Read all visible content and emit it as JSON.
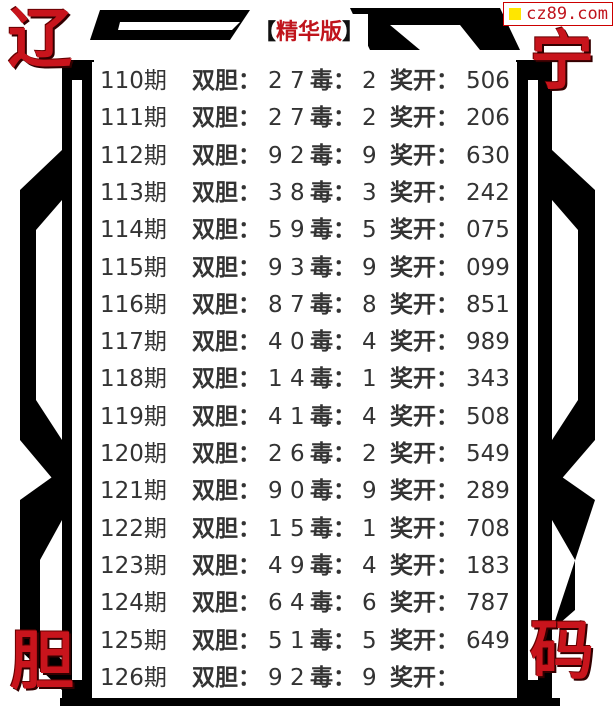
{
  "title": {
    "left_bracket": "【",
    "text": "精华版",
    "right_bracket": "】"
  },
  "watermark": "cz89.com",
  "corner_logo": [
    "辽",
    "宁",
    "胆",
    "码"
  ],
  "colors": {
    "accent_red": "#c0141c",
    "frame": "#000000",
    "text": "#333333"
  },
  "labels": {
    "period_suffix": "期",
    "double": "双胆：",
    "poison": "毒：",
    "draw": "奖开："
  },
  "rows": [
    {
      "period": "110期",
      "double": "2 7",
      "poison": "2",
      "draw": "506"
    },
    {
      "period": "111期",
      "double": "2 7",
      "poison": "2",
      "draw": "206"
    },
    {
      "period": "112期",
      "double": "9 2",
      "poison": "9",
      "draw": "630"
    },
    {
      "period": "113期",
      "double": "3 8",
      "poison": "3",
      "draw": "242"
    },
    {
      "period": "114期",
      "double": "5 9",
      "poison": "5",
      "draw": "075"
    },
    {
      "period": "115期",
      "double": "9 3",
      "poison": "9",
      "draw": "099"
    },
    {
      "period": "116期",
      "double": "8 7",
      "poison": "8",
      "draw": "851"
    },
    {
      "period": "117期",
      "double": "4 0",
      "poison": "4",
      "draw": "989"
    },
    {
      "period": "118期",
      "double": "1 4",
      "poison": "1",
      "draw": "343"
    },
    {
      "period": "119期",
      "double": "4 1",
      "poison": "4",
      "draw": "508"
    },
    {
      "period": "120期",
      "double": "2 6",
      "poison": "2",
      "draw": "549"
    },
    {
      "period": "121期",
      "double": "9 0",
      "poison": "9",
      "draw": "289"
    },
    {
      "period": "122期",
      "double": "1 5",
      "poison": "1",
      "draw": "708"
    },
    {
      "period": "123期",
      "double": "4 9",
      "poison": "4",
      "draw": "183"
    },
    {
      "period": "124期",
      "double": "6 4",
      "poison": "6",
      "draw": "787"
    },
    {
      "period": "125期",
      "double": "5 1",
      "poison": "5",
      "draw": "649"
    },
    {
      "period": "126期",
      "double": "9 2",
      "poison": "9",
      "draw": ""
    }
  ]
}
